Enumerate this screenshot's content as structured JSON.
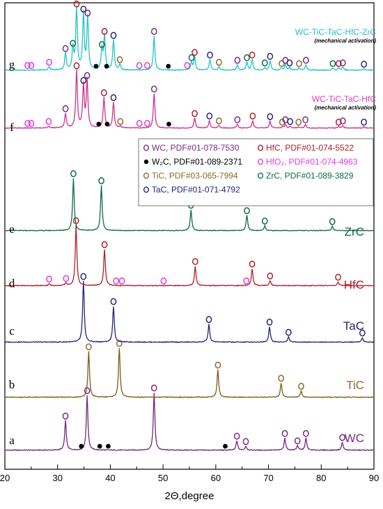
{
  "chart_data": {
    "type": "line",
    "xlabel": "2Θ,degree",
    "xlim": [
      20,
      90
    ],
    "x_ticks": [
      "20",
      "30",
      "40",
      "50",
      "60",
      "70",
      "80",
      "90"
    ],
    "symbol_marker_note": "open circle and filled dot markers identify phases",
    "legend": [
      {
        "symbol": "o",
        "phase": "WC",
        "label": "WC, PDF#01-078-7530",
        "color": "#7a2a83"
      },
      {
        "symbol": "•",
        "phase": "W2C",
        "label": "W₂C, PDF#01-089-2371",
        "color": "#000000"
      },
      {
        "symbol": "o",
        "phase": "TiC",
        "label": "TiC, PDF#03-065-7994",
        "color": "#8a6a2a"
      },
      {
        "symbol": "o",
        "phase": "TaC",
        "label": "TaC, PDF#01-071-4792",
        "color": "#25237a"
      },
      {
        "symbol": "o",
        "phase": "HfC",
        "label": "HfC, PDF#01-074-5522",
        "color": "#b01e2a"
      },
      {
        "symbol": "o",
        "phase": "HfO2",
        "label": "HfO₂, PDF#01-074-4963",
        "color": "#e03ce0"
      },
      {
        "symbol": "o",
        "phase": "ZrC",
        "label": "ZrC, PDF#01-089-3829",
        "color": "#0e6a4a"
      }
    ],
    "series": [
      {
        "letter": "a",
        "name": "WC",
        "color": "#6d2a78",
        "text_color": "#7a2a83",
        "peaks": [
          {
            "x": 31.5,
            "h": 0.44,
            "m": "WC"
          },
          {
            "x": 35.6,
            "h": 0.82,
            "m": "WC"
          },
          {
            "x": 48.3,
            "h": 0.86,
            "m": "WC"
          },
          {
            "x": 64.0,
            "h": 0.14,
            "m": "WC"
          },
          {
            "x": 65.7,
            "h": 0.06,
            "m": "WC"
          },
          {
            "x": 73.1,
            "h": 0.18,
            "m": "WC"
          },
          {
            "x": 75.5,
            "h": 0.07,
            "m": "WC"
          },
          {
            "x": 77.1,
            "h": 0.18,
            "m": "WC"
          },
          {
            "x": 84.0,
            "h": 0.12,
            "m": "WC"
          },
          {
            "x": 34.5,
            "h": 0.0,
            "m": "W2C"
          },
          {
            "x": 38.0,
            "h": 0.0,
            "m": "W2C"
          },
          {
            "x": 39.6,
            "h": 0.0,
            "m": "W2C"
          },
          {
            "x": 61.8,
            "h": 0.0,
            "m": "W2C"
          }
        ]
      },
      {
        "letter": "b",
        "name": "TiC",
        "color": "#7a5a1a",
        "text_color": "#8a6a2a",
        "peaks": [
          {
            "x": 35.9,
            "h": 0.8,
            "m": "TiC"
          },
          {
            "x": 41.7,
            "h": 0.86,
            "m": "TiC"
          },
          {
            "x": 60.4,
            "h": 0.48,
            "m": "TiC"
          },
          {
            "x": 72.4,
            "h": 0.25,
            "m": "TiC"
          },
          {
            "x": 76.2,
            "h": 0.11,
            "m": "TiC"
          }
        ]
      },
      {
        "letter": "c",
        "name": "TaC",
        "color": "#25237a",
        "text_color": "#25237a",
        "peaks": [
          {
            "x": 34.9,
            "h": 0.95,
            "m": "TaC"
          },
          {
            "x": 40.6,
            "h": 0.56,
            "m": "TaC"
          },
          {
            "x": 58.7,
            "h": 0.28,
            "m": "TaC"
          },
          {
            "x": 70.2,
            "h": 0.24,
            "m": "TaC"
          },
          {
            "x": 73.8,
            "h": 0.08,
            "m": "TaC"
          },
          {
            "x": 87.8,
            "h": 0.07,
            "m": "TaC"
          }
        ]
      },
      {
        "letter": "d",
        "name": "HfC",
        "color": "#b01e2a",
        "text_color": "#b01e2a",
        "peaks": [
          {
            "x": 33.5,
            "h": 0.96,
            "m": "HfC"
          },
          {
            "x": 38.9,
            "h": 0.58,
            "m": "HfC"
          },
          {
            "x": 56.1,
            "h": 0.31,
            "m": "HfC"
          },
          {
            "x": 66.9,
            "h": 0.27,
            "m": "HfC"
          },
          {
            "x": 70.3,
            "h": 0.08,
            "m": "HfC"
          },
          {
            "x": 83.2,
            "h": 0.06,
            "m": "HfC"
          },
          {
            "x": 28.4,
            "h": 0.03,
            "m": "HfO2"
          },
          {
            "x": 31.6,
            "h": 0.04,
            "m": "HfO2"
          },
          {
            "x": 41.1,
            "h": 0.0,
            "m": "HfO2"
          },
          {
            "x": 42.2,
            "h": 0.0,
            "m": "HfO2"
          },
          {
            "x": 50.1,
            "h": 0.0,
            "m": "HfO2"
          },
          {
            "x": 65.8,
            "h": 0.0,
            "m": "HfO2"
          }
        ]
      },
      {
        "letter": "e",
        "name": "ZrC",
        "color": "#0e6a4a",
        "text_color": "#0e6a4a",
        "peaks": [
          {
            "x": 33.0,
            "h": 0.96,
            "m": "ZrC"
          },
          {
            "x": 38.3,
            "h": 0.83,
            "m": "ZrC"
          },
          {
            "x": 55.3,
            "h": 0.38,
            "m": "ZrC"
          },
          {
            "x": 65.9,
            "h": 0.28,
            "m": "ZrC"
          },
          {
            "x": 69.3,
            "h": 0.09,
            "m": "ZrC"
          },
          {
            "x": 82.1,
            "h": 0.08,
            "m": "ZrC"
          }
        ]
      },
      {
        "letter": "f",
        "name": "WC-TiC-TaC-HfC",
        "note": "(mechanical activation)",
        "color": "#d0308a",
        "text_color": "#e03cb4",
        "peaks": [
          {
            "x": 31.5,
            "h": 0.24,
            "m": "WC"
          },
          {
            "x": 33.6,
            "h": 0.94,
            "m": "HfC"
          },
          {
            "x": 34.9,
            "h": 0.7,
            "m": "TaC"
          },
          {
            "x": 35.6,
            "h": 0.78,
            "m": "WC"
          },
          {
            "x": 38.8,
            "h": 0.5,
            "m": "HfC"
          },
          {
            "x": 40.6,
            "h": 0.42,
            "m": "TaC"
          },
          {
            "x": 48.3,
            "h": 0.56,
            "m": "WC"
          },
          {
            "x": 56.0,
            "h": 0.16,
            "m": "HfC"
          },
          {
            "x": 58.8,
            "h": 0.12,
            "m": "TaC"
          },
          {
            "x": 60.6,
            "h": 0.04,
            "m": "TiC"
          },
          {
            "x": 64.1,
            "h": 0.06,
            "m": "WC"
          },
          {
            "x": 67.0,
            "h": 0.12,
            "m": "HfC"
          },
          {
            "x": 70.3,
            "h": 0.11,
            "m": "TaC"
          },
          {
            "x": 72.6,
            "h": 0.02,
            "m": "TiC"
          },
          {
            "x": 73.2,
            "h": 0.06,
            "m": "WC"
          },
          {
            "x": 74.1,
            "h": 0.03,
            "m": "TaC"
          },
          {
            "x": 75.7,
            "h": 0.02,
            "m": "TiC"
          },
          {
            "x": 77.0,
            "h": 0.06,
            "m": "WC"
          },
          {
            "x": 83.3,
            "h": 0.02,
            "m": "HfC"
          },
          {
            "x": 84.1,
            "h": 0.04,
            "m": "WC"
          },
          {
            "x": 88.1,
            "h": 0.02,
            "m": "TaC"
          },
          {
            "x": 24.3,
            "h": 0.0,
            "m": "HfO2"
          },
          {
            "x": 25.0,
            "h": 0.0,
            "m": "HfO2"
          },
          {
            "x": 28.3,
            "h": 0.03,
            "m": "HfO2"
          },
          {
            "x": 41.9,
            "h": 0.03,
            "m": "TiC"
          },
          {
            "x": 45.5,
            "h": 0.0,
            "m": "HfO2"
          },
          {
            "x": 47.0,
            "h": 0.0,
            "m": "HfO2"
          },
          {
            "x": 37.8,
            "h": 0.0,
            "m": "W2C"
          },
          {
            "x": 39.4,
            "h": 0.0,
            "m": "W2C"
          },
          {
            "x": 51.1,
            "h": 0.0,
            "m": "W2C"
          }
        ]
      },
      {
        "letter": "g",
        "name": "WC-TiC-TaC-HfC-ZrC",
        "note": "(mechanical activation)",
        "color": "#20c4c4",
        "text_color": "#20c4c4",
        "peaks": [
          {
            "x": 28.4,
            "h": 0.05,
            "m": "HfO2"
          },
          {
            "x": 31.5,
            "h": 0.26,
            "m": "WC"
          },
          {
            "x": 32.9,
            "h": 0.34,
            "m": "ZrC"
          },
          {
            "x": 33.6,
            "h": 0.94,
            "m": "HfC"
          },
          {
            "x": 34.9,
            "h": 0.86,
            "m": "TaC"
          },
          {
            "x": 35.7,
            "h": 0.8,
            "m": "WC"
          },
          {
            "x": 38.4,
            "h": 0.32,
            "m": "ZrC"
          },
          {
            "x": 38.9,
            "h": 0.52,
            "m": "HfC"
          },
          {
            "x": 40.6,
            "h": 0.46,
            "m": "TaC"
          },
          {
            "x": 41.8,
            "h": 0.09,
            "m": "TiC"
          },
          {
            "x": 48.3,
            "h": 0.52,
            "m": "WC"
          },
          {
            "x": 55.4,
            "h": 0.12,
            "m": "ZrC"
          },
          {
            "x": 56.0,
            "h": 0.2,
            "m": "HfC"
          },
          {
            "x": 58.9,
            "h": 0.16,
            "m": "TaC"
          },
          {
            "x": 60.6,
            "h": 0.05,
            "m": "TiC"
          },
          {
            "x": 64.1,
            "h": 0.08,
            "m": "WC"
          },
          {
            "x": 65.9,
            "h": 0.12,
            "m": "ZrC"
          },
          {
            "x": 66.9,
            "h": 0.16,
            "m": "HfC"
          },
          {
            "x": 69.3,
            "h": 0.04,
            "m": "ZrC"
          },
          {
            "x": 70.3,
            "h": 0.14,
            "m": "TaC"
          },
          {
            "x": 72.5,
            "h": 0.03,
            "m": "TiC"
          },
          {
            "x": 73.2,
            "h": 0.08,
            "m": "WC"
          },
          {
            "x": 74.0,
            "h": 0.04,
            "m": "TaC"
          },
          {
            "x": 75.8,
            "h": 0.03,
            "m": "TiC"
          },
          {
            "x": 77.1,
            "h": 0.08,
            "m": "WC"
          },
          {
            "x": 82.2,
            "h": 0.03,
            "m": "ZrC"
          },
          {
            "x": 83.3,
            "h": 0.03,
            "m": "HfC"
          },
          {
            "x": 84.1,
            "h": 0.04,
            "m": "WC"
          },
          {
            "x": 88.1,
            "h": 0.02,
            "m": "TaC"
          },
          {
            "x": 24.3,
            "h": 0.0,
            "m": "HfO2"
          },
          {
            "x": 25.0,
            "h": 0.0,
            "m": "HfO2"
          },
          {
            "x": 45.5,
            "h": 0.0,
            "m": "HfO2"
          },
          {
            "x": 47.0,
            "h": 0.0,
            "m": "HfO2"
          },
          {
            "x": 54.6,
            "h": 0.0,
            "m": "HfO2"
          },
          {
            "x": 37.3,
            "h": 0.0,
            "m": "W2C"
          },
          {
            "x": 39.3,
            "h": 0.0,
            "m": "W2C"
          },
          {
            "x": 51.0,
            "h": 0.0,
            "m": "W2C"
          }
        ]
      }
    ]
  }
}
